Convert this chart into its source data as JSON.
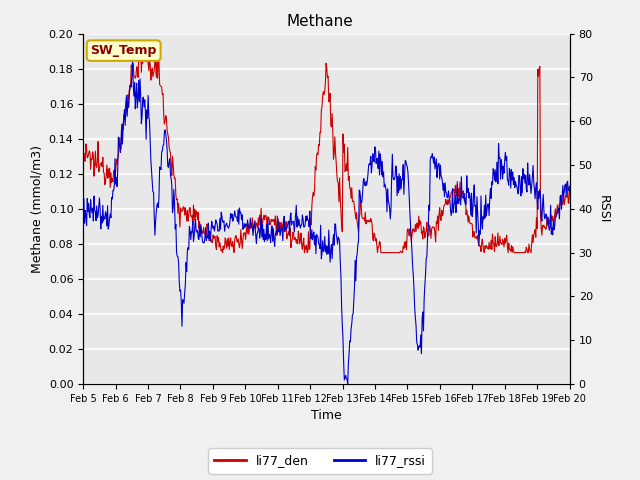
{
  "title": "Methane",
  "ylabel_left": "Methane (mmol/m3)",
  "ylabel_right": "RSSI",
  "xlabel": "Time",
  "ylim_left": [
    0.0,
    0.2
  ],
  "ylim_right": [
    0,
    80
  ],
  "yticks_left": [
    0.0,
    0.02,
    0.04,
    0.06,
    0.08,
    0.1,
    0.12,
    0.14,
    0.16,
    0.18,
    0.2
  ],
  "yticks_right": [
    0,
    10,
    20,
    30,
    40,
    50,
    60,
    70,
    80
  ],
  "xtick_labels": [
    "Feb 5",
    "Feb 6",
    "Feb 7",
    "Feb 8",
    "Feb 9",
    "Feb 10",
    "Feb 11",
    "Feb 12",
    "Feb 13",
    "Feb 14",
    "Feb 15",
    "Feb 16",
    "Feb 17",
    "Feb 18",
    "Feb 19",
    "Feb 20"
  ],
  "line_red_color": "#cc0000",
  "line_blue_color": "#0000cc",
  "legend_label_red": "li77_den",
  "legend_label_blue": "li77_rssi",
  "annotation_text": "SW_Temp",
  "annotation_bg": "#ffffcc",
  "annotation_border": "#ccaa00",
  "annotation_text_color": "#880000",
  "plot_bg_color": "#e8e8e8",
  "fig_bg_color": "#f0f0f0",
  "grid_color": "#ffffff",
  "title_fontsize": 11,
  "label_fontsize": 9,
  "tick_fontsize": 8
}
